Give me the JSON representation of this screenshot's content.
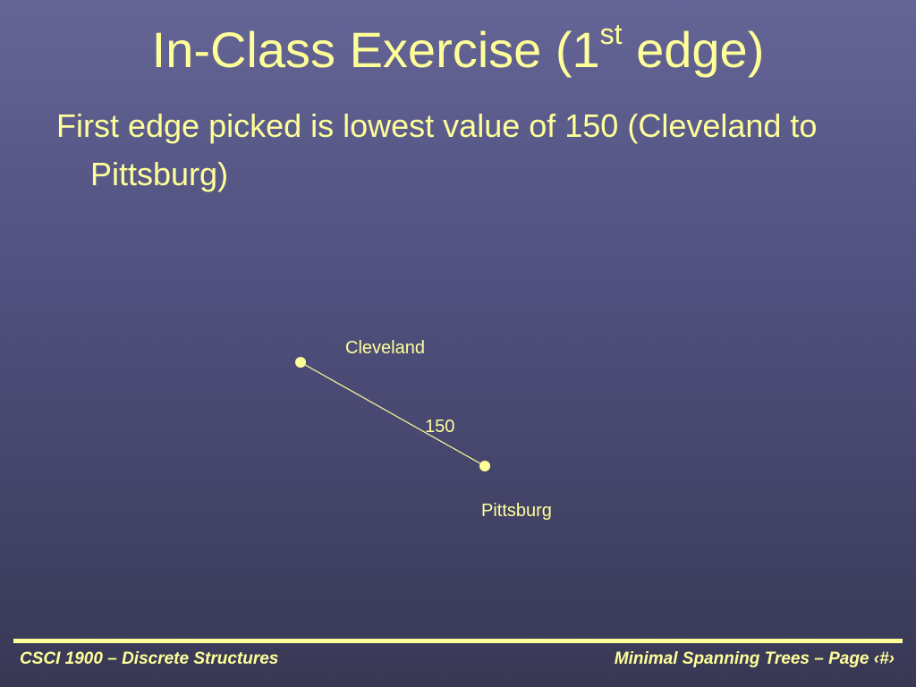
{
  "slide": {
    "title_main": "In-Class Exercise (1",
    "title_sup": "st",
    "title_end": " edge)",
    "bullet": "First edge picked is lowest value of 150 (Cleveland to Pittsburg)"
  },
  "diagram": {
    "nodes": [
      {
        "id": "cleveland",
        "label": "Cleveland"
      },
      {
        "id": "pittsburg",
        "label": "Pittsburg"
      }
    ],
    "edges": [
      {
        "from": "cleveland",
        "to": "pittsburg",
        "weight": "150"
      }
    ],
    "colors": {
      "text": "#ffff99",
      "background_top": "#646496",
      "background_bottom": "#383855"
    }
  },
  "footer": {
    "left": "CSCI 1900 – Discrete Structures",
    "right": "Minimal Spanning Trees – Page ‹#›"
  }
}
